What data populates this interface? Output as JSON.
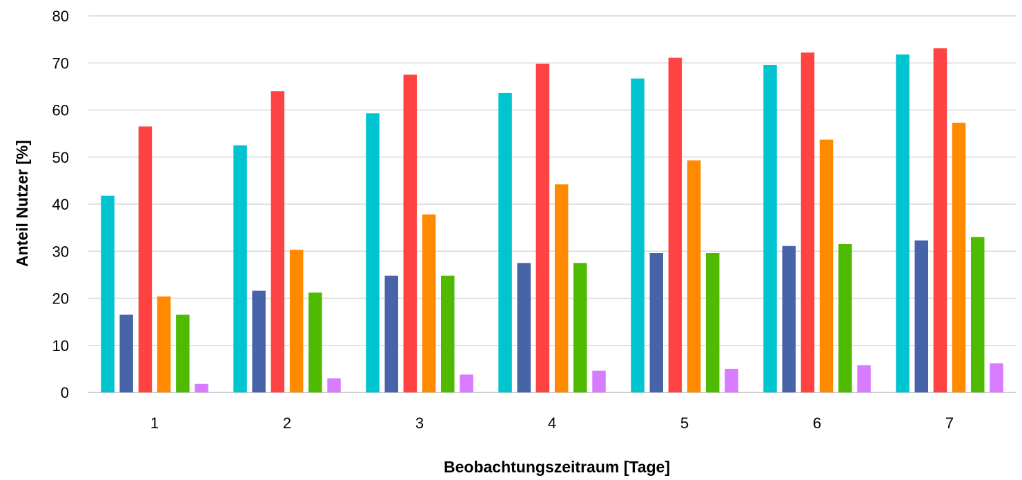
{
  "chart_data": {
    "type": "bar",
    "title": "",
    "xlabel": "Beobachtungszeitraum  [Tage]",
    "ylabel": "Anteil Nutzer [%]",
    "ylim": [
      0,
      80
    ],
    "yticks": [
      0,
      10,
      20,
      30,
      40,
      50,
      60,
      70,
      80
    ],
    "grid": true,
    "legend": "none",
    "categories": [
      "1",
      "2",
      "3",
      "4",
      "5",
      "6",
      "7"
    ],
    "series": [
      {
        "color": "#00C5D0",
        "values": [
          41.8,
          52.5,
          59.3,
          63.6,
          66.7,
          69.6,
          71.8
        ]
      },
      {
        "color": "#4864A8",
        "values": [
          16.5,
          21.6,
          24.8,
          27.5,
          29.6,
          31.1,
          32.3
        ]
      },
      {
        "color": "#FF4242",
        "values": [
          56.5,
          64.0,
          67.5,
          69.8,
          71.1,
          72.2,
          73.1
        ]
      },
      {
        "color": "#FF8A00",
        "values": [
          20.4,
          30.3,
          37.8,
          44.2,
          49.3,
          53.7,
          57.3
        ]
      },
      {
        "color": "#4EBB00",
        "values": [
          16.5,
          21.2,
          24.8,
          27.5,
          29.6,
          31.5,
          33.0
        ]
      },
      {
        "color": "#D87CFF",
        "values": [
          1.8,
          3.0,
          3.8,
          4.6,
          5.0,
          5.8,
          6.2
        ]
      }
    ]
  }
}
